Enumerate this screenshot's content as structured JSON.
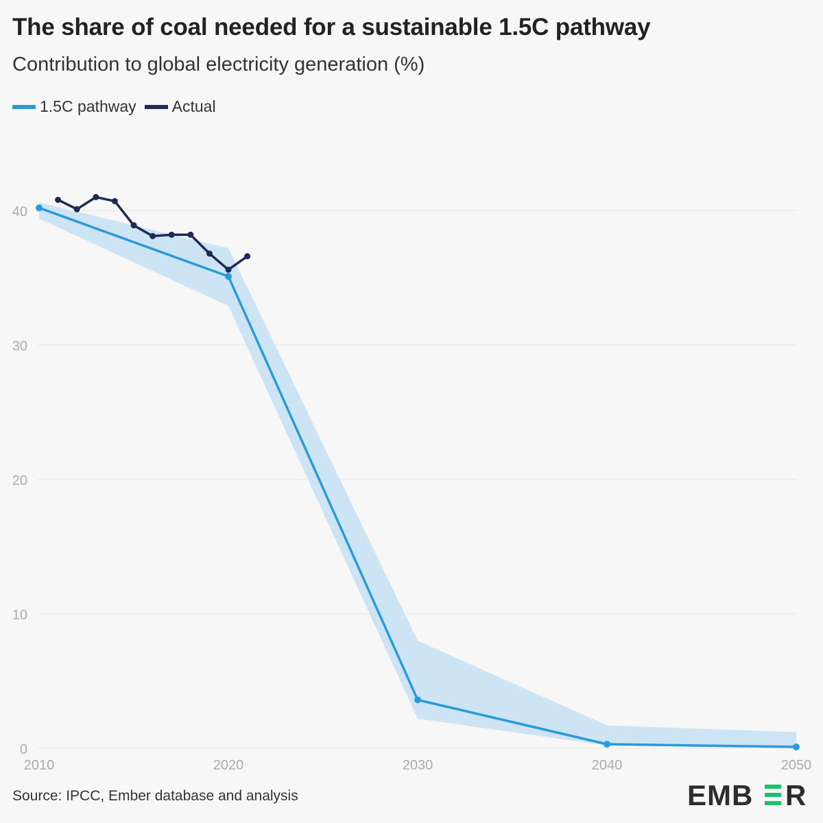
{
  "title": "The share of coal needed for a sustainable 1.5C pathway",
  "subtitle": "Contribution to global electricity generation (%)",
  "legend": [
    {
      "label": "1.5C pathway",
      "color": "#2b9ad9"
    },
    {
      "label": "Actual",
      "color": "#1f2a55"
    }
  ],
  "source": "Source: IPCC, Ember database and analysis",
  "logo": {
    "text": "EMBER",
    "color": "#2d2d2d",
    "accent": "#19c26b"
  },
  "colors": {
    "pathway": "#2b9ad9",
    "range": "#cde4f4",
    "actual": "#1f2a55",
    "grid": "#e6e6e6",
    "tick": "#aaaaaa"
  },
  "chart_data": {
    "type": "line",
    "title": "The share of coal needed for a sustainable 1.5C pathway",
    "subtitle": "Contribution to global electricity generation (%)",
    "xlim": [
      2010,
      2050
    ],
    "ylim": [
      0,
      42
    ],
    "x_ticks": [
      "2010",
      "2020",
      "2030",
      "2040",
      "2050"
    ],
    "y_ticks": [
      "0",
      "10",
      "20",
      "30",
      "40"
    ],
    "grid": true,
    "legend_position": "top-left",
    "series": [
      {
        "name": "1.5C pathway",
        "type": "line",
        "x": [
          2010,
          2020,
          2030,
          2040,
          2050
        ],
        "values": [
          40.2,
          35.1,
          3.6,
          0.3,
          0.1
        ]
      },
      {
        "name": "Actual",
        "type": "line",
        "x": [
          2011,
          2012,
          2013,
          2014,
          2015,
          2016,
          2017,
          2018,
          2019,
          2020,
          2021
        ],
        "values": [
          40.8,
          40.1,
          41.0,
          40.7,
          38.9,
          38.1,
          38.2,
          38.2,
          36.8,
          35.6,
          36.6
        ]
      }
    ],
    "range_band": {
      "x": [
        2010,
        2020,
        2030,
        2040,
        2050
      ],
      "low": [
        39.4,
        32.9,
        2.2,
        0.2,
        0.0
      ],
      "high": [
        40.6,
        37.2,
        8.0,
        1.7,
        1.2
      ]
    }
  }
}
